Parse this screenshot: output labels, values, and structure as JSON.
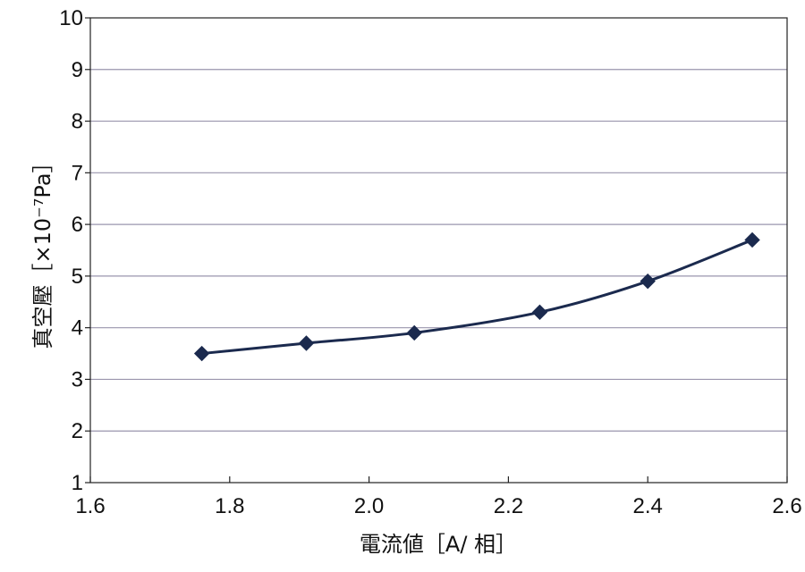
{
  "chart_data": {
    "type": "line",
    "x": [
      1.76,
      1.91,
      2.065,
      2.245,
      2.4,
      2.55
    ],
    "series": [
      {
        "values": [
          3.5,
          3.7,
          3.9,
          4.3,
          4.9,
          5.7
        ]
      }
    ],
    "xlabel": "電流値［A/ 相］",
    "ylabel": "真空壓［×10⁻⁷Pa］",
    "xlim": [
      1.6,
      2.6
    ],
    "ylim": [
      1,
      10
    ],
    "xticks": [
      "1.6",
      "1.8",
      "2.0",
      "2.2",
      "2.4",
      "2.6"
    ],
    "yticks": [
      "1",
      "2",
      "3",
      "4",
      "5",
      "6",
      "7",
      "8",
      "9",
      "10"
    ],
    "grid": "horizontal",
    "marker": "diamond",
    "colors": {
      "line": "#1b2a4e",
      "grid": "#9a95ad",
      "axis": "#222222"
    }
  }
}
